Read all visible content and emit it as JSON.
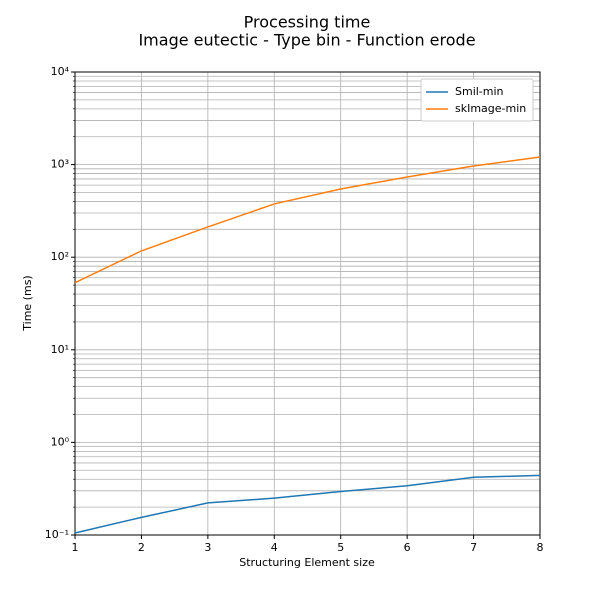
{
  "chart_data": {
    "type": "line",
    "title": "Processing time",
    "subtitle": "Image eutectic - Type bin - Function erode",
    "xlabel": "Structuring Element size",
    "ylabel": "Time (ms)",
    "x": [
      1,
      2,
      3,
      4,
      5,
      6,
      7,
      8
    ],
    "series": [
      {
        "name": "Smil-min",
        "color": "#1f77b4",
        "values": [
          0.105,
          0.155,
          0.222,
          0.25,
          0.295,
          0.34,
          0.42,
          0.44
        ]
      },
      {
        "name": "skImage-min",
        "color": "#ff7f0e",
        "values": [
          53,
          117,
          212,
          376,
          545,
          735,
          966,
          1208
        ]
      }
    ],
    "xlim": [
      1,
      8
    ],
    "xticks": [
      1,
      2,
      3,
      4,
      5,
      6,
      7,
      8
    ],
    "ylim": [
      0.1,
      10000
    ],
    "yscale": "log",
    "yticks": [
      {
        "value": 0.1,
        "label": "10⁻¹"
      },
      {
        "value": 1,
        "label": "10⁰"
      },
      {
        "value": 10,
        "label": "10¹"
      },
      {
        "value": 100,
        "label": "10²"
      },
      {
        "value": 1000,
        "label": "10³"
      },
      {
        "value": 10000,
        "label": "10⁴"
      }
    ],
    "yminorticks": [
      0.2,
      0.3,
      0.4,
      0.5,
      0.6,
      0.7,
      0.8,
      0.9,
      2,
      3,
      4,
      5,
      6,
      7,
      8,
      9,
      20,
      30,
      40,
      50,
      60,
      70,
      80,
      90,
      200,
      300,
      400,
      500,
      600,
      700,
      800,
      900,
      2000,
      3000,
      4000,
      5000,
      6000,
      7000,
      8000,
      9000
    ],
    "grid": true,
    "legend": "upper right"
  }
}
